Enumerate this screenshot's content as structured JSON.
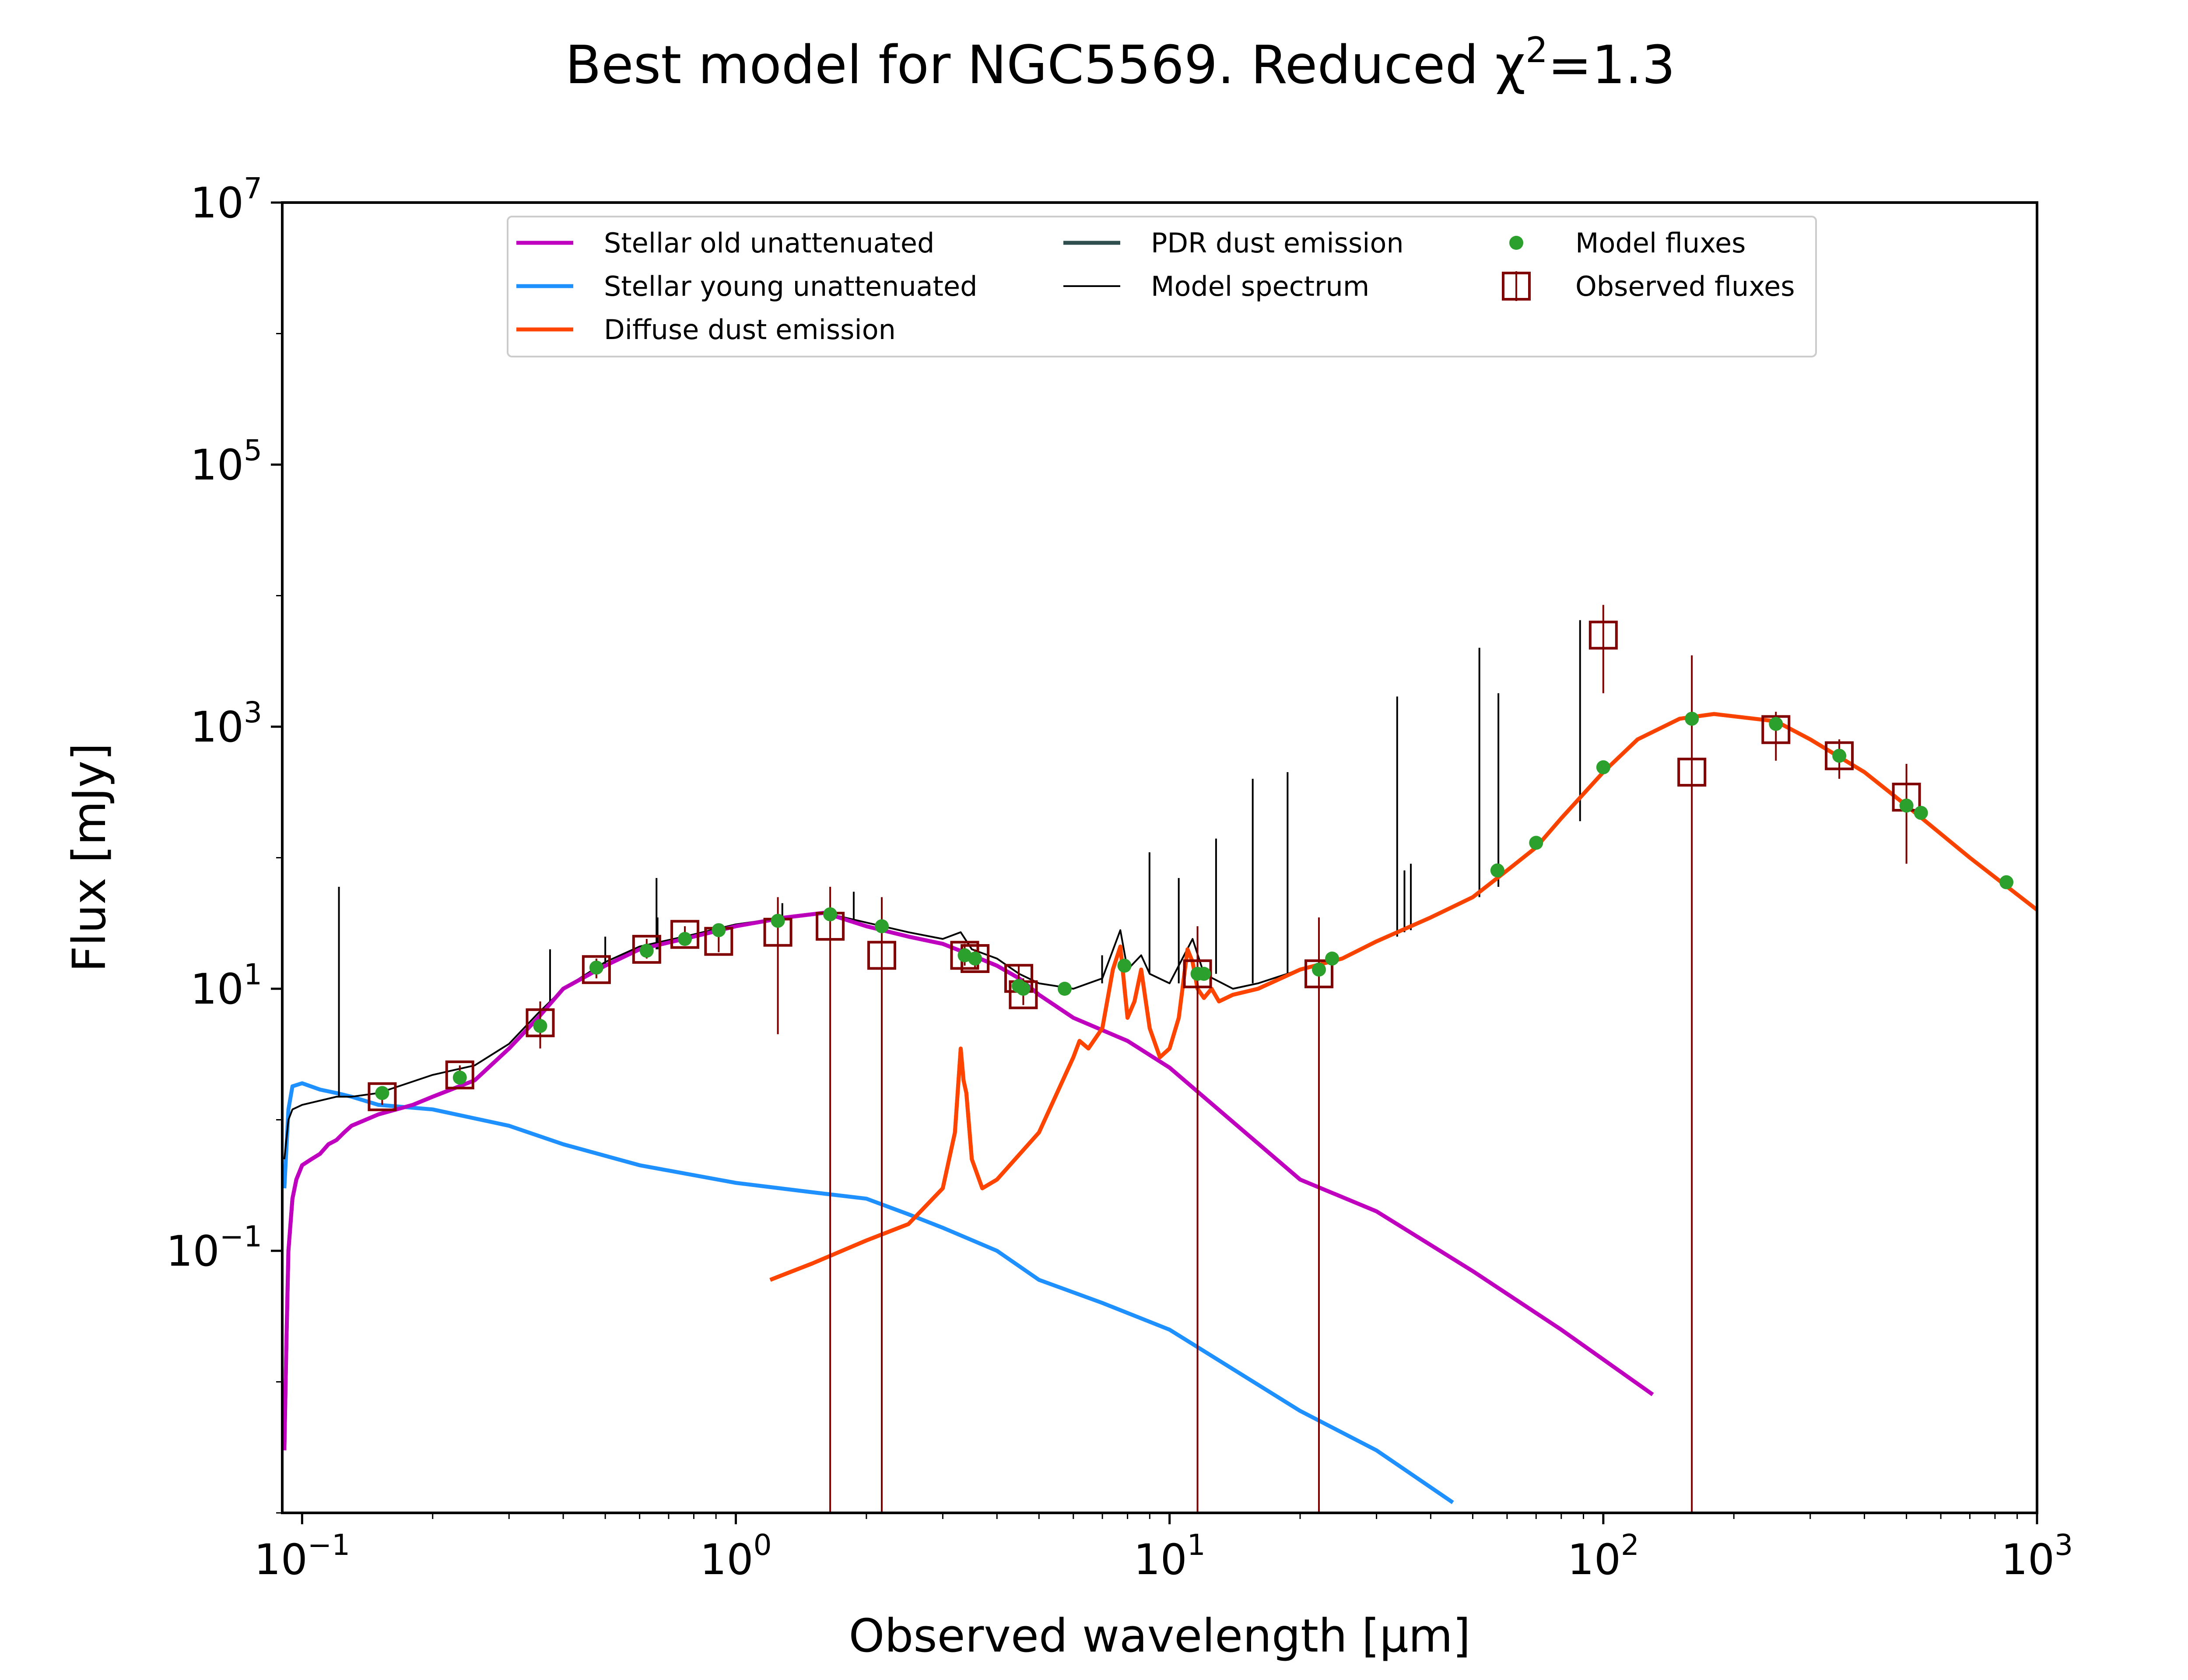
{
  "chart_data": {
    "type": "line",
    "title": "Best model for NGC5569. Reduced χ²=1.3",
    "title_parts": {
      "main": "Best model for NGC5569. Reduced χ",
      "sup": "2",
      "tail": "=1.3"
    },
    "xlabel": "Observed wavelength [μm]",
    "ylabel": "Flux [mJy]",
    "x_scale": "log",
    "y_scale": "log",
    "xlim": [
      0.09,
      1000
    ],
    "ylim": [
      0.001,
      10000000
    ],
    "x_ticks": [
      {
        "value": 0.1,
        "base": "10",
        "exp": "−1"
      },
      {
        "value": 1,
        "base": "10",
        "exp": "0"
      },
      {
        "value": 10,
        "base": "10",
        "exp": "1"
      },
      {
        "value": 100,
        "base": "10",
        "exp": "2"
      },
      {
        "value": 1000,
        "base": "10",
        "exp": "3"
      }
    ],
    "y_ticks": [
      {
        "value": 0.1,
        "base": "10",
        "exp": "−1"
      },
      {
        "value": 10,
        "base": "10",
        "exp": "1"
      },
      {
        "value": 1000,
        "base": "10",
        "exp": "3"
      },
      {
        "value": 100000,
        "base": "10",
        "exp": "5"
      },
      {
        "value": 10000000,
        "base": "10",
        "exp": "7"
      }
    ],
    "grid": false,
    "legend_position": "top",
    "series": [
      {
        "name": "Stellar old unattenuated",
        "kind": "line",
        "color": "#bf00bf",
        "x": [
          0.091,
          0.092,
          0.093,
          0.095,
          0.097,
          0.1,
          0.105,
          0.11,
          0.115,
          0.12,
          0.125,
          0.13,
          0.15,
          0.18,
          0.2,
          0.25,
          0.3,
          0.35,
          0.4,
          0.5,
          0.6,
          0.8,
          1.0,
          1.3,
          1.6,
          2.0,
          2.5,
          3.0,
          3.5,
          4.0,
          4.5,
          5.0,
          6.0,
          8.0,
          10,
          20,
          30,
          50,
          80,
          130
        ],
        "y": [
          0.003,
          0.02,
          0.1,
          0.25,
          0.35,
          0.45,
          0.5,
          0.55,
          0.65,
          0.7,
          0.8,
          0.9,
          1.1,
          1.3,
          1.5,
          2.0,
          3.5,
          6.0,
          10,
          15,
          20,
          25,
          30,
          35,
          38,
          30,
          25,
          22,
          18,
          15,
          12,
          9,
          6,
          4,
          2.5,
          0.35,
          0.2,
          0.07,
          0.025,
          0.008
        ]
      },
      {
        "name": "Stellar young unattenuated",
        "kind": "line",
        "color": "#1e90ff",
        "x": [
          0.091,
          0.093,
          0.095,
          0.1,
          0.11,
          0.12,
          0.13,
          0.15,
          0.2,
          0.3,
          0.4,
          0.6,
          1.0,
          1.5,
          2.0,
          2.5,
          3.0,
          4.0,
          5.0,
          7.0,
          10,
          20,
          30,
          45
        ],
        "y": [
          0.3,
          1.2,
          1.8,
          1.9,
          1.7,
          1.6,
          1.5,
          1.3,
          1.2,
          0.9,
          0.65,
          0.45,
          0.33,
          0.28,
          0.25,
          0.19,
          0.15,
          0.1,
          0.06,
          0.04,
          0.025,
          0.006,
          0.003,
          0.0012
        ]
      },
      {
        "name": "Diffuse dust emission",
        "kind": "line",
        "color": "#ff4500",
        "x": [
          1.2,
          1.5,
          2.0,
          2.5,
          3.0,
          3.2,
          3.3,
          3.35,
          3.4,
          3.5,
          3.7,
          4.0,
          5.0,
          6.0,
          6.2,
          6.5,
          7.0,
          7.4,
          7.7,
          8.0,
          8.3,
          8.6,
          9.0,
          9.5,
          10.0,
          10.5,
          11.0,
          11.3,
          11.6,
          12.0,
          12.5,
          13.0,
          14.0,
          16,
          20,
          25,
          30,
          40,
          50,
          60,
          70,
          80,
          100,
          120,
          150,
          180,
          200,
          250,
          300,
          400,
          500,
          700,
          1000
        ],
        "y": [
          0.06,
          0.08,
          0.12,
          0.16,
          0.3,
          0.8,
          3.5,
          2.0,
          1.6,
          0.5,
          0.3,
          0.35,
          0.8,
          3.0,
          4.0,
          3.5,
          5.0,
          14,
          21,
          6.0,
          8.0,
          14,
          5.0,
          3.0,
          3.5,
          6.0,
          20,
          16,
          10,
          8.5,
          10,
          8.0,
          9.0,
          10,
          14,
          17,
          23,
          35,
          50,
          80,
          120,
          200,
          450,
          800,
          1150,
          1250,
          1200,
          1100,
          800,
          450,
          250,
          100,
          40
        ]
      },
      {
        "name": "PDR dust emission",
        "kind": "line",
        "color": "#2f4f4f",
        "x": [],
        "y": []
      },
      {
        "name": "Model spectrum",
        "kind": "line",
        "color": "#000000",
        "x": [
          0.091,
          0.093,
          0.095,
          0.1,
          0.11,
          0.12,
          0.13,
          0.15,
          0.2,
          0.25,
          0.3,
          0.35,
          0.4,
          0.5,
          0.6,
          0.8,
          1.0,
          1.3,
          1.6,
          2.0,
          2.5,
          3.0,
          3.3,
          3.5,
          4.0,
          4.5,
          5.0,
          6.0,
          6.5,
          7.0,
          7.7,
          8.0,
          8.6,
          9.0,
          10,
          11.3,
          12,
          14,
          16,
          20,
          25,
          30,
          40,
          50,
          60,
          70,
          80,
          100,
          120,
          150,
          180,
          200,
          250,
          300,
          400,
          500,
          700,
          1000
        ],
        "y": [
          0.5,
          1.0,
          1.2,
          1.3,
          1.4,
          1.5,
          1.5,
          1.6,
          2.2,
          2.6,
          3.8,
          6.5,
          10,
          16,
          21,
          26,
          31,
          35,
          38,
          32,
          27,
          24,
          27,
          20,
          17,
          13,
          11,
          10,
          11,
          12,
          28,
          14,
          18,
          13,
          11,
          24,
          13,
          10,
          11,
          14,
          17,
          23,
          35,
          50,
          80,
          120,
          200,
          450,
          800,
          1150,
          1250,
          1200,
          1100,
          800,
          450,
          250,
          100,
          40
        ]
      }
    ],
    "emission_lines": {
      "color": "#000000",
      "lines": [
        {
          "x": 0.1216,
          "base": 1.5,
          "peak": 60
        },
        {
          "x": 0.373,
          "base": 8,
          "peak": 20
        },
        {
          "x": 0.5,
          "base": 15,
          "peak": 25
        },
        {
          "x": 0.6563,
          "base": 20,
          "peak": 70
        },
        {
          "x": 0.66,
          "base": 20,
          "peak": 35
        },
        {
          "x": 1.28,
          "base": 35,
          "peak": 45
        },
        {
          "x": 1.87,
          "base": 32,
          "peak": 55
        },
        {
          "x": 6.99,
          "base": 11,
          "peak": 18
        },
        {
          "x": 8.99,
          "base": 13,
          "peak": 110
        },
        {
          "x": 10.5,
          "base": 11,
          "peak": 70
        },
        {
          "x": 12.8,
          "base": 13,
          "peak": 140
        },
        {
          "x": 15.55,
          "base": 11,
          "peak": 400
        },
        {
          "x": 18.71,
          "base": 13,
          "peak": 450
        },
        {
          "x": 33.48,
          "base": 25,
          "peak": 1700
        },
        {
          "x": 34.8,
          "base": 27,
          "peak": 80
        },
        {
          "x": 36.0,
          "base": 28,
          "peak": 90
        },
        {
          "x": 51.8,
          "base": 50,
          "peak": 4000
        },
        {
          "x": 57.3,
          "base": 60,
          "peak": 1800
        },
        {
          "x": 88.4,
          "base": 190,
          "peak": 6500
        }
      ]
    },
    "model_fluxes": {
      "name": "Model fluxes",
      "kind": "scatter",
      "color": "#2ca02c",
      "x": [
        0.153,
        0.231,
        0.354,
        0.477,
        0.623,
        0.763,
        0.913,
        1.25,
        1.65,
        2.17,
        3.37,
        3.56,
        4.49,
        4.6,
        5.73,
        7.87,
        11.6,
        12.0,
        22.1,
        23.7,
        57.0,
        70.0,
        100,
        160,
        250,
        350,
        500,
        540,
        850
      ],
      "y": [
        1.6,
        2.1,
        5.2,
        14.5,
        19.5,
        24,
        28,
        33,
        37,
        30,
        18,
        17,
        10.5,
        10,
        10,
        15,
        13,
        13,
        14,
        17,
        80,
        130,
        490,
        1150,
        1050,
        600,
        250,
        220,
        65
      ]
    },
    "observed_fluxes": {
      "name": "Observed fluxes",
      "kind": "scatter",
      "color": "#800000",
      "x": [
        0.153,
        0.231,
        0.354,
        0.477,
        0.623,
        0.763,
        0.913,
        1.25,
        1.65,
        2.17,
        3.37,
        3.56,
        4.49,
        4.6,
        11.6,
        22.1,
        100,
        160,
        250,
        350,
        500
      ],
      "y": [
        1.5,
        2.2,
        5.5,
        14,
        20,
        26,
        23,
        27,
        30,
        18,
        18,
        17,
        12,
        9,
        13,
        13,
        5000,
        450,
        950,
        600,
        290
      ],
      "err_low": [
        1.3,
        1.9,
        3.5,
        12,
        17,
        22,
        19,
        4.5,
        0.001,
        0.001,
        15,
        14,
        9.5,
        7.5,
        0.001,
        0.001,
        1800,
        0.001,
        550,
        400,
        90
      ],
      "err_high": [
        1.8,
        2.6,
        8.0,
        17,
        24,
        30,
        28,
        50,
        60,
        50,
        22,
        20,
        15,
        12,
        30,
        35,
        8500,
        3500,
        1300,
        800,
        520
      ]
    },
    "legend": {
      "entries": [
        {
          "label": "Stellar old unattenuated",
          "marker": "line",
          "color": "#bf00bf"
        },
        {
          "label": "Stellar young unattenuated",
          "marker": "line",
          "color": "#1e90ff"
        },
        {
          "label": "Diffuse dust emission",
          "marker": "line",
          "color": "#ff4500"
        },
        {
          "label": "PDR dust emission",
          "marker": "line",
          "color": "#2f4f4f"
        },
        {
          "label": "Model spectrum",
          "marker": "thin-line",
          "color": "#000000"
        },
        {
          "label": "Model fluxes",
          "marker": "dot",
          "color": "#2ca02c"
        },
        {
          "label": "Observed fluxes",
          "marker": "square-errorbar",
          "color": "#800000"
        }
      ]
    }
  }
}
